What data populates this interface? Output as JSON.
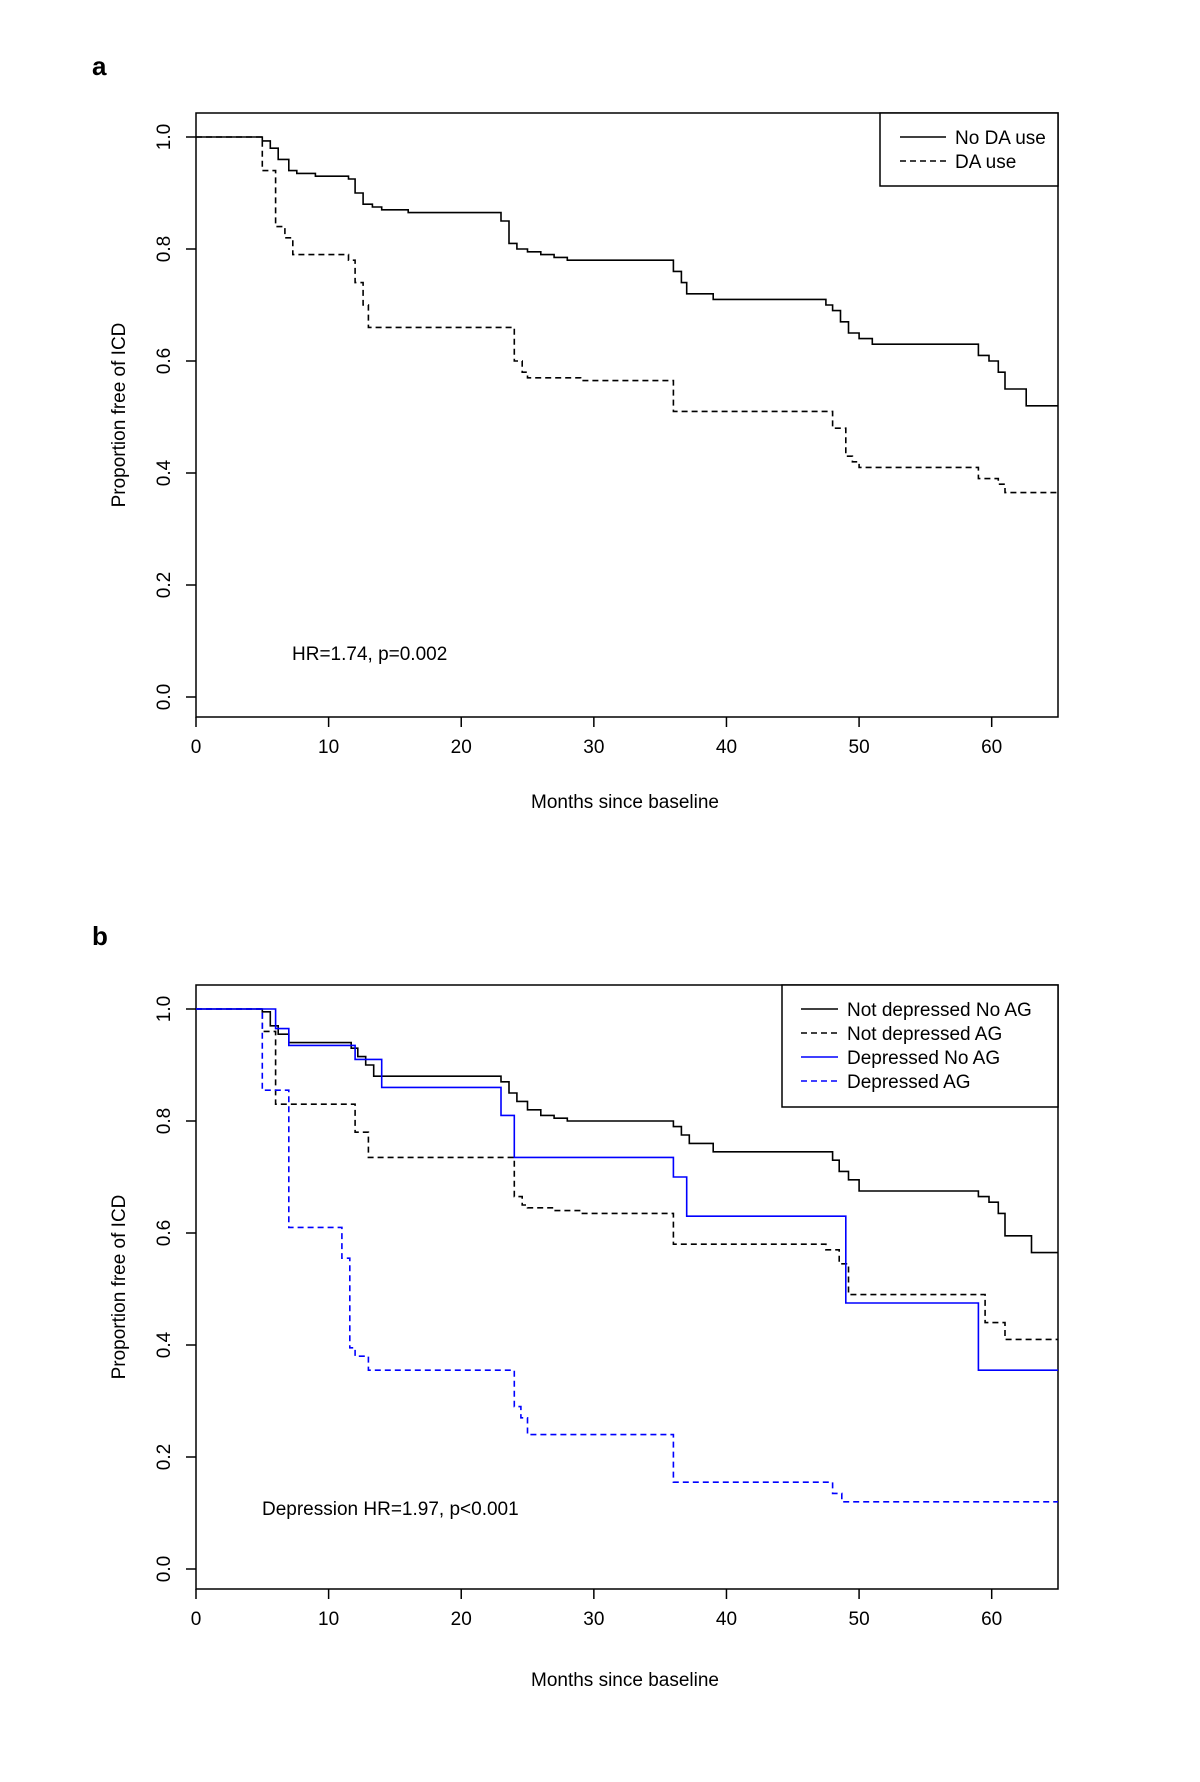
{
  "chart_data": [
    {
      "panel": "a",
      "type": "line",
      "step": true,
      "xlabel": "Months since baseline",
      "ylabel": "Proportion free of ICD",
      "xlim": [
        0,
        65
      ],
      "ylim": [
        0,
        1
      ],
      "x_ticks": [
        0,
        10,
        20,
        30,
        40,
        50,
        60
      ],
      "y_ticks": [
        "0.0",
        "0.2",
        "0.4",
        "0.6",
        "0.8",
        "1.0"
      ],
      "legend_position": "top-right",
      "annotation": "HR=1.74, p=0.002",
      "series": [
        {
          "name": "No DA use",
          "color": "#000000",
          "dash": "solid",
          "x": [
            0,
            5,
            5.6,
            6.2,
            7,
            7.6,
            9,
            11.5,
            12,
            12.6,
            13.3,
            14,
            16,
            23,
            23.6,
            24.2,
            25,
            26,
            27,
            28,
            36,
            36.6,
            37,
            39,
            47.5,
            48,
            48.6,
            49.2,
            50,
            51,
            59,
            59.8,
            60.5,
            61,
            62.6,
            65
          ],
          "y": [
            1.0,
            0.993,
            0.98,
            0.96,
            0.94,
            0.935,
            0.93,
            0.925,
            0.9,
            0.88,
            0.875,
            0.87,
            0.865,
            0.85,
            0.81,
            0.8,
            0.795,
            0.79,
            0.785,
            0.78,
            0.76,
            0.74,
            0.72,
            0.71,
            0.7,
            0.69,
            0.67,
            0.65,
            0.64,
            0.63,
            0.61,
            0.6,
            0.58,
            0.55,
            0.52,
            0.52
          ]
        },
        {
          "name": "DA use",
          "color": "#000000",
          "dash": "dashed",
          "x": [
            0,
            5,
            6,
            6.7,
            7.3,
            11.5,
            12,
            12.6,
            13,
            24,
            24.6,
            25,
            29,
            36,
            48,
            49,
            49.5,
            50,
            59,
            60.5,
            61,
            65
          ],
          "y": [
            1.0,
            0.94,
            0.84,
            0.82,
            0.79,
            0.78,
            0.74,
            0.7,
            0.66,
            0.6,
            0.58,
            0.57,
            0.565,
            0.51,
            0.48,
            0.43,
            0.42,
            0.41,
            0.39,
            0.38,
            0.365,
            0.365
          ]
        }
      ]
    },
    {
      "panel": "b",
      "type": "line",
      "step": true,
      "xlabel": "Months since baseline",
      "ylabel": "Proportion free of ICD",
      "xlim": [
        0,
        65
      ],
      "ylim": [
        0,
        1
      ],
      "x_ticks": [
        0,
        10,
        20,
        30,
        40,
        50,
        60
      ],
      "y_ticks": [
        "0.0",
        "0.2",
        "0.4",
        "0.6",
        "0.8",
        "1.0"
      ],
      "legend_position": "top-right",
      "annotation": "Depression HR=1.97, p<0.001",
      "series": [
        {
          "name": "Not depressed No AG",
          "color": "#000000",
          "dash": "solid",
          "x": [
            0,
            5,
            5.6,
            6.2,
            7,
            11.7,
            12.2,
            12.8,
            13.4,
            23,
            23.6,
            24.2,
            25,
            26,
            27,
            28,
            36,
            36.6,
            37.2,
            39,
            48,
            48.5,
            49.2,
            50,
            59,
            59.8,
            60.5,
            61,
            63,
            65
          ],
          "y": [
            1.0,
            0.995,
            0.97,
            0.955,
            0.94,
            0.93,
            0.915,
            0.9,
            0.88,
            0.87,
            0.85,
            0.835,
            0.82,
            0.81,
            0.805,
            0.8,
            0.79,
            0.775,
            0.76,
            0.745,
            0.73,
            0.71,
            0.695,
            0.675,
            0.665,
            0.655,
            0.635,
            0.595,
            0.565,
            0.565
          ]
        },
        {
          "name": "Not depressed  AG",
          "color": "#000000",
          "dash": "dashed",
          "x": [
            0,
            5,
            6,
            12,
            13,
            24,
            24.6,
            25,
            27,
            29,
            36,
            47.5,
            48.5,
            49.2,
            59.5,
            61,
            65
          ],
          "y": [
            1.0,
            0.96,
            0.83,
            0.78,
            0.735,
            0.665,
            0.65,
            0.645,
            0.64,
            0.635,
            0.58,
            0.57,
            0.545,
            0.49,
            0.44,
            0.41,
            0.41
          ]
        },
        {
          "name": "Depressed  No AG",
          "color": "#0000ff",
          "dash": "solid",
          "x": [
            0,
            6,
            7,
            12,
            14,
            23,
            24,
            36,
            37,
            49,
            59,
            65
          ],
          "y": [
            1.0,
            0.965,
            0.935,
            0.91,
            0.86,
            0.81,
            0.735,
            0.7,
            0.63,
            0.475,
            0.355,
            0.355
          ]
        },
        {
          "name": "Depressed AG",
          "color": "#0000ff",
          "dash": "dashed",
          "x": [
            0,
            5,
            7,
            11,
            11.6,
            12,
            13,
            24,
            24.5,
            25,
            36,
            48,
            48.7,
            65
          ],
          "y": [
            1.0,
            0.855,
            0.61,
            0.555,
            0.395,
            0.38,
            0.355,
            0.29,
            0.27,
            0.24,
            0.155,
            0.135,
            0.12,
            0.12
          ]
        }
      ]
    }
  ]
}
